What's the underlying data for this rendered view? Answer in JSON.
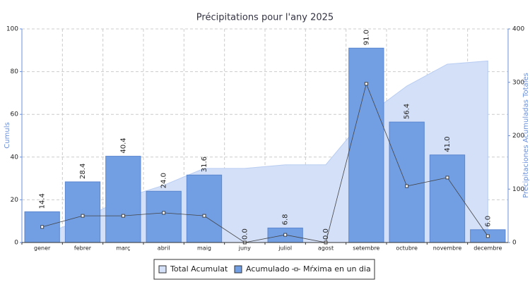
{
  "chart_data": {
    "type": "bar",
    "title": "Précipitations pour l'any 2025",
    "ylabel": "Cumuls",
    "y2label": "Precipitaciones Acumuladas Totales",
    "categories": [
      "gener",
      "febrer",
      "març",
      "abril",
      "maig",
      "juny",
      "juliol",
      "agost",
      "setembre",
      "octubre",
      "novembre",
      "decembre"
    ],
    "series": [
      {
        "name": "Total Acumulat",
        "type": "area",
        "axis": "y2",
        "color": "#d3e0f8",
        "values": [
          14.4,
          42.8,
          83.2,
          107.2,
          138.8,
          138.8,
          145.6,
          145.6,
          236.6,
          293.0,
          334.0,
          340.0
        ]
      },
      {
        "name": "Acumulado",
        "type": "bar",
        "axis": "y",
        "color": "#729ee3",
        "values": [
          14.4,
          28.4,
          40.4,
          24.0,
          31.6,
          0.0,
          6.8,
          0.0,
          91.0,
          56.4,
          41.0,
          6.0
        ],
        "value_labels": [
          "14.4",
          "28.4",
          "40.4",
          "24.0",
          "31.6",
          "0.0",
          "6.8",
          "0.0",
          "91.0",
          "56.4",
          "41.0",
          "6.0"
        ]
      },
      {
        "name": "Mŕxima en un dia",
        "type": "line",
        "axis": "y",
        "color": "#444444",
        "values": [
          7.3,
          12.5,
          12.5,
          13.9,
          12.5,
          0,
          3.6,
          0,
          74.3,
          26.4,
          30.4,
          3.0
        ]
      }
    ],
    "ylim": [
      0,
      100
    ],
    "yticks": [
      0,
      20,
      40,
      60,
      80,
      100
    ],
    "y2lim": [
      0,
      400
    ],
    "y2ticks": [
      0,
      100,
      200,
      300,
      400
    ],
    "grid": true,
    "legend": "bottom"
  }
}
